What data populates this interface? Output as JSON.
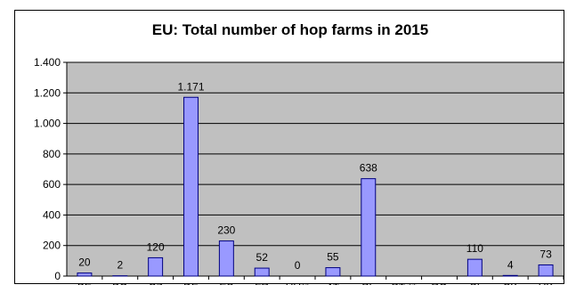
{
  "chart_data": {
    "type": "bar",
    "title": "EU: Total number of hop farms in 2015",
    "xlabel": "",
    "ylabel": "",
    "categories": [
      "BE",
      "BG",
      "CZ",
      "DE",
      "ES",
      "FR",
      "HU**",
      "AT",
      "PL",
      "PT **",
      "RO",
      "SI",
      "SK",
      "UK"
    ],
    "values": [
      20,
      2,
      120,
      1171,
      230,
      52,
      0,
      55,
      638,
      null,
      null,
      110,
      4,
      73
    ],
    "data_labels": [
      "20",
      "2",
      "120",
      "1.171",
      "230",
      "52",
      "0",
      "55",
      "638",
      "",
      "",
      "110",
      "4",
      "73"
    ],
    "ylim": [
      0,
      1400
    ],
    "y_ticks": [
      0,
      200,
      400,
      600,
      800,
      1000,
      1200,
      1400
    ],
    "y_tick_labels": [
      "0",
      "200",
      "400",
      "600",
      "800",
      "1.000",
      "1.200",
      "1.400"
    ],
    "grid": true,
    "legend": "none",
    "colors": {
      "plot_background": "#c0c0c0",
      "bar_fill": "#9999ff",
      "bar_stroke": "#000080",
      "axis": "#000000"
    }
  }
}
